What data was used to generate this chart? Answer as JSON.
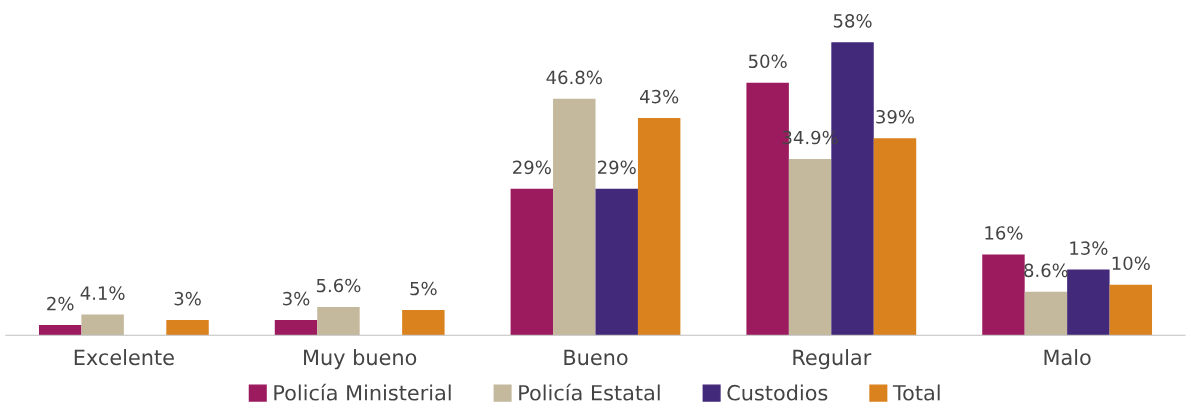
{
  "chart_data": {
    "type": "bar",
    "categories": [
      "Excelente",
      "Muy bueno",
      "Bueno",
      "Regular",
      "Malo"
    ],
    "series": [
      {
        "name": "Policía Ministerial",
        "color": "#9b1b5e",
        "values": [
          2,
          3,
          29,
          50,
          16
        ],
        "value_labels": [
          "2%",
          "3%",
          "29%",
          "50%",
          "16%"
        ]
      },
      {
        "name": "Policía Estatal",
        "color": "#c4b89d",
        "values": [
          4.1,
          5.6,
          46.8,
          34.9,
          8.6
        ],
        "value_labels": [
          "4.1%",
          "5.6%",
          "46.8%",
          "34.9%",
          "8.6%"
        ]
      },
      {
        "name": "Custodios",
        "color": "#43297a",
        "values": [
          null,
          null,
          29,
          58,
          13
        ],
        "value_labels": [
          null,
          null,
          "29%",
          "58%",
          "13%"
        ]
      },
      {
        "name": "Total",
        "color": "#d9821e",
        "values": [
          3,
          5,
          43,
          39,
          10
        ],
        "value_labels": [
          "3%",
          "5%",
          "43%",
          "39%",
          "10%"
        ]
      }
    ],
    "tick_labels": "x",
    "grid": false,
    "legend": "bottom"
  }
}
